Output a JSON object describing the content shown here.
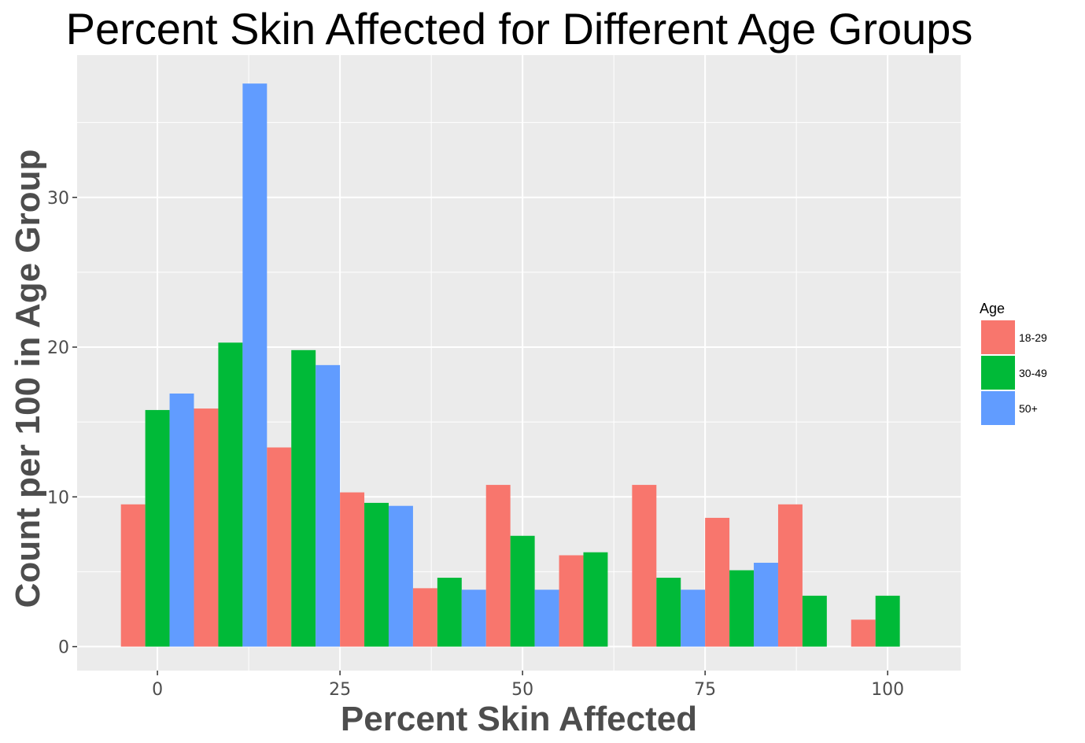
{
  "chart_data": {
    "type": "bar",
    "title": "Percent Skin Affected for Different Age Groups",
    "xlabel": "Percent Skin Affected",
    "ylabel": "Count per 100 in Age Group",
    "xlim": [
      -11,
      110
    ],
    "ylim": [
      -1.6,
      39.5
    ],
    "x_ticks": [
      0,
      25,
      50,
      75,
      100
    ],
    "y_ticks": [
      0,
      10,
      20,
      30
    ],
    "grid": true,
    "panel_background": "#ebebeb",
    "legend": {
      "title": "Age",
      "position": "right"
    },
    "bin_centers": [
      0,
      10,
      20,
      30,
      40,
      50,
      60,
      70,
      80,
      90,
      100
    ],
    "bar_width": 10,
    "series": [
      {
        "name": "18-29",
        "color": "#F8766D",
        "values": [
          9.5,
          15.9,
          13.3,
          10.3,
          3.9,
          10.8,
          6.1,
          10.8,
          8.6,
          9.5,
          1.8
        ]
      },
      {
        "name": "30-49",
        "color": "#00BA38",
        "values": [
          15.8,
          20.3,
          19.8,
          9.6,
          4.6,
          7.4,
          6.3,
          4.6,
          5.1,
          3.4,
          3.4
        ]
      },
      {
        "name": "50+",
        "color": "#619CFF",
        "values": [
          16.9,
          37.6,
          18.8,
          9.4,
          3.8,
          3.8,
          0,
          3.8,
          5.6,
          0,
          0
        ]
      }
    ]
  }
}
